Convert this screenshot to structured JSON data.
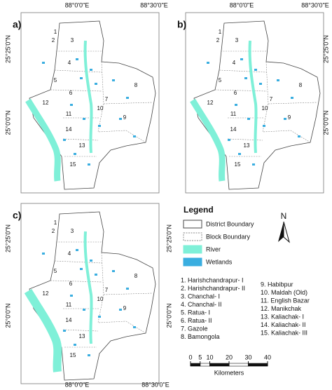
{
  "panels": [
    {
      "label": "a)"
    },
    {
      "label": "b)"
    },
    {
      "label": "c)"
    }
  ],
  "block_numbers": [
    "1",
    "2",
    "3",
    "4",
    "5",
    "6",
    "7",
    "8",
    "9",
    "10",
    "11",
    "12",
    "13",
    "14",
    "15"
  ],
  "coordinates": {
    "lon": [
      "88°0'0\"E",
      "88°30'0\"E"
    ],
    "lat": [
      "25°25'0\"N",
      "25°0'0\"N"
    ]
  },
  "legend": {
    "title": "Legend",
    "items": [
      "District Boundary",
      "Block Boundary",
      "River",
      "Wetlands"
    ],
    "north": "N"
  },
  "blocks": [
    "1. Harishchandrapur- I",
    "2. Harishchandrapur- II",
    "3. Chanchal- I",
    "4. Chanchal- II",
    "5. Ratua- I",
    "6. Ratua- II",
    "7. Gazole",
    "8. Bamongola",
    "9. Habibpur",
    "10. Maldah (Old)",
    "11. English Bazar",
    "12. Manikchak",
    "13. Kaliachak- I",
    "14. Kaliachak- II",
    "15. Kaliachak- III"
  ],
  "scale_bar": {
    "ticks": [
      0,
      5,
      10,
      20,
      30,
      40
    ],
    "unit": "Kilometers"
  }
}
